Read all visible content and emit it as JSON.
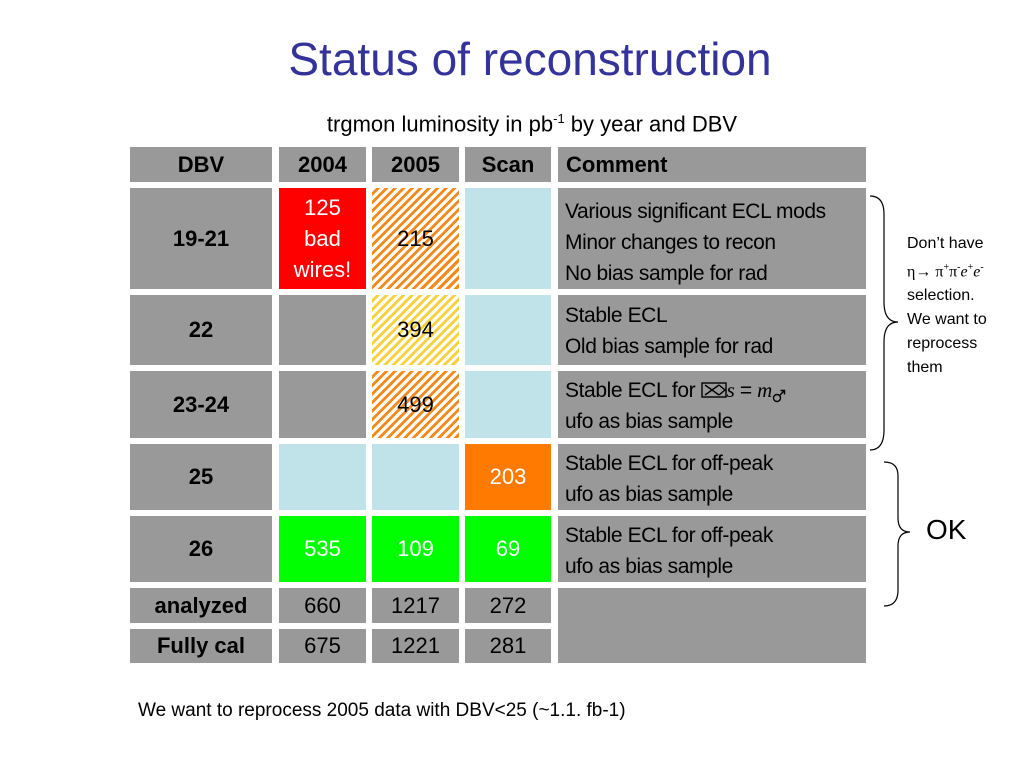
{
  "title": "Status of reconstruction",
  "subtitle": {
    "before": "trgmon luminosity in pb",
    "sup": "-1",
    "after": " by year and DBV"
  },
  "table": {
    "headers": [
      "DBV",
      "2004",
      "2005",
      "Scan",
      "Comment"
    ],
    "rows": [
      {
        "dbv": "19-21",
        "y2004": "125 bad wires!",
        "y2004_lines": [
          "125",
          "bad",
          "wires!"
        ],
        "y2005": "215",
        "scan": "",
        "comment": [
          "Various significant ECL mods",
          "Minor changes to recon",
          "No bias sample for rad"
        ]
      },
      {
        "dbv": "22",
        "y2004": "",
        "y2005": "394",
        "scan": "",
        "comment": [
          "Stable ECL",
          "Old bias sample for rad"
        ]
      },
      {
        "dbv": "23-24",
        "y2004": "",
        "y2005": "499",
        "scan": "",
        "comment_prefix": "Stable ECL for ",
        "comment_s": "s",
        "comment_eq": " = ",
        "comment_m": "m",
        "comment_line2": "ufo as bias sample"
      },
      {
        "dbv": "25",
        "y2004": "",
        "y2005": "",
        "scan": "203",
        "comment": [
          "Stable ECL for off-peak",
          "ufo as bias sample"
        ]
      },
      {
        "dbv": "26",
        "y2004": "535",
        "y2005": "109",
        "scan": "69",
        "comment": [
          "Stable ECL for off-peak",
          "ufo as bias sample"
        ]
      },
      {
        "dbv": "analyzed",
        "y2004": "660",
        "y2005": "1217",
        "scan": "272"
      },
      {
        "dbv": "Fully cal",
        "y2004": "675",
        "y2005": "1221",
        "scan": "281"
      }
    ]
  },
  "side_note": {
    "line1": "Don’t have",
    "eta": "η",
    "arrow": "→",
    "pi1": "π",
    "pi1_sup": "+",
    "pi2": "π",
    "pi2_sup": "-",
    "e1": "e",
    "e1_sup": "+",
    "e2": "e",
    "e2_sup": "-",
    "line3": "selection.",
    "line4": "We want to",
    "line5": "reprocess",
    "line6": "them"
  },
  "ok_label": "OK",
  "footer": "We want to reprocess 2005 data  with DBV<25 (~1.1. fb-1)",
  "colors": {
    "title": "#333399",
    "header_gray": "#999999",
    "light_blue": "#bfe3e8",
    "red": "#ff0000",
    "green": "#00ff00",
    "orange": "#ff7a00",
    "hatch_orange": "#f28a1e",
    "hatch_yellow": "#f5d23c"
  },
  "icons": [
    "brace-right-icon",
    "envelope-x-icon",
    "mars-symbol-icon"
  ]
}
